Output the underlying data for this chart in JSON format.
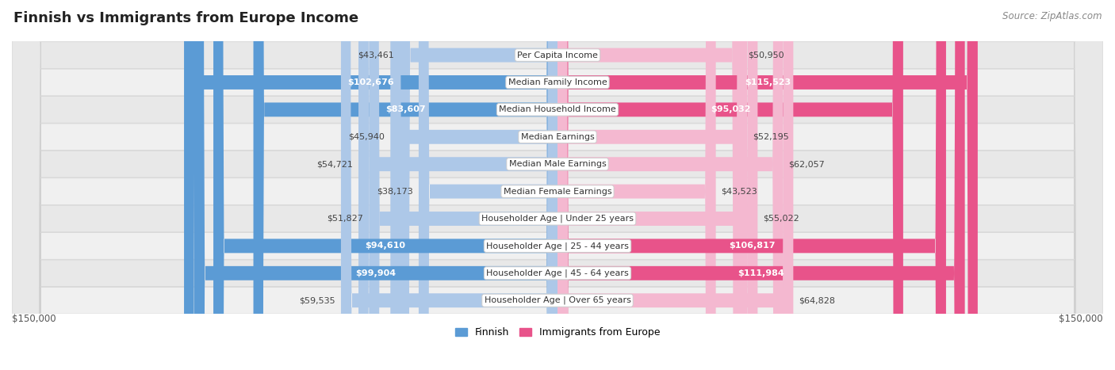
{
  "title": "Finnish vs Immigrants from Europe Income",
  "source": "Source: ZipAtlas.com",
  "categories": [
    "Per Capita Income",
    "Median Family Income",
    "Median Household Income",
    "Median Earnings",
    "Median Male Earnings",
    "Median Female Earnings",
    "Householder Age | Under 25 years",
    "Householder Age | 25 - 44 years",
    "Householder Age | 45 - 64 years",
    "Householder Age | Over 65 years"
  ],
  "finnish_values": [
    43461,
    102676,
    83607,
    45940,
    54721,
    38173,
    51827,
    94610,
    99904,
    59535
  ],
  "immigrant_values": [
    50950,
    115523,
    95032,
    52195,
    62057,
    43523,
    55022,
    106817,
    111984,
    64828
  ],
  "finnish_labels": [
    "$43,461",
    "$102,676",
    "$83,607",
    "$45,940",
    "$54,721",
    "$38,173",
    "$51,827",
    "$94,610",
    "$99,904",
    "$59,535"
  ],
  "immigrant_labels": [
    "$50,950",
    "$115,523",
    "$95,032",
    "$52,195",
    "$62,057",
    "$43,523",
    "$55,022",
    "$106,817",
    "$111,984",
    "$64,828"
  ],
  "finnish_color_light": "#adc8e8",
  "finnish_color_dark": "#5b9bd5",
  "immigrant_color_light": "#f4b8d0",
  "immigrant_color_dark": "#e8538a",
  "label_outside_color": "#444444",
  "label_inside_color": "#ffffff",
  "max_value": 150000,
  "bar_height": 0.52,
  "background_color": "#ffffff",
  "row_colors": [
    "#f0f0f0",
    "#e8e8e8"
  ],
  "row_edge_color": "#d0d0d0",
  "legend_labels": [
    "Finnish",
    "Immigrants from Europe"
  ],
  "xlabel_left": "$150,000",
  "xlabel_right": "$150,000",
  "title_fontsize": 13,
  "label_fontsize": 8,
  "category_fontsize": 8,
  "axis_fontsize": 8.5,
  "source_fontsize": 8.5,
  "inside_threshold": 70000
}
